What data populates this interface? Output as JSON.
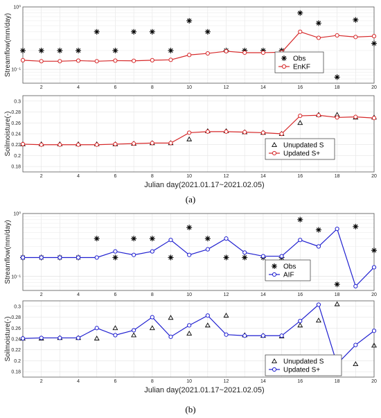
{
  "figure": {
    "captions": [
      "(a)",
      "(b)"
    ],
    "xlabel": "Julian day(2021.01.17~2021.02.05)"
  },
  "chart_data": [
    {
      "panel": "(a)",
      "type": "line",
      "ylabel": "Streamflow(mm/day)",
      "yscale": "log",
      "ylim": [
        0.06,
        1.0
      ],
      "yticks": [
        0.1,
        1
      ],
      "yticklabels": [
        "10⁻¹",
        "10⁰"
      ],
      "xlim": [
        1,
        20
      ],
      "xticks": [
        2,
        4,
        6,
        8,
        10,
        12,
        14,
        16,
        18,
        20
      ],
      "grid": true,
      "legend_position": "right",
      "x": [
        1,
        2,
        3,
        4,
        5,
        6,
        7,
        8,
        9,
        10,
        11,
        12,
        13,
        14,
        15,
        16,
        17,
        18,
        19,
        20
      ],
      "series": [
        {
          "name": "Obs",
          "marker": "asterisk",
          "color": "#000000",
          "values": [
            0.2,
            0.2,
            0.2,
            0.2,
            0.4,
            0.2,
            0.4,
            0.4,
            0.2,
            0.6,
            0.4,
            0.2,
            0.2,
            0.2,
            0.2,
            0.8,
            0.55,
            0.075,
            0.62,
            0.26
          ]
        },
        {
          "name": "EnKF",
          "marker": "circle",
          "color": "#d62728",
          "values": [
            0.14,
            0.135,
            0.135,
            0.138,
            0.135,
            0.138,
            0.137,
            0.14,
            0.142,
            0.17,
            0.18,
            0.195,
            0.185,
            0.185,
            0.188,
            0.4,
            0.32,
            0.35,
            0.33,
            0.34
          ]
        }
      ]
    },
    {
      "panel": "(a)",
      "type": "line",
      "ylabel": "Soilmoisture(-)",
      "ylim": [
        0.17,
        0.31
      ],
      "yticks": [
        0.18,
        0.2,
        0.22,
        0.24,
        0.26,
        0.28,
        0.3
      ],
      "yticklabels": [
        "0.18",
        "0.2",
        "0.22",
        "0.24",
        "0.26",
        "0.28",
        "0.3"
      ],
      "xlim": [
        1,
        20
      ],
      "xticks": [
        2,
        4,
        6,
        8,
        10,
        12,
        14,
        16,
        18,
        20
      ],
      "grid": true,
      "legend_position": "bottom-right",
      "x": [
        1,
        2,
        3,
        4,
        5,
        6,
        7,
        8,
        9,
        10,
        11,
        12,
        13,
        14,
        15,
        16,
        17,
        18,
        19,
        20
      ],
      "series": [
        {
          "name": "Unupdated S",
          "marker": "triangle",
          "color": "#000000",
          "values": [
            0.221,
            0.221,
            0.221,
            0.221,
            0.221,
            0.221,
            0.222,
            0.223,
            0.223,
            0.23,
            0.245,
            0.245,
            0.243,
            0.242,
            0.24,
            0.26,
            0.275,
            0.275,
            0.27,
            0.27
          ]
        },
        {
          "name": "Updated S+",
          "marker": "circle",
          "color": "#d62728",
          "values": [
            0.221,
            0.22,
            0.22,
            0.22,
            0.22,
            0.221,
            0.222,
            0.223,
            0.223,
            0.242,
            0.244,
            0.244,
            0.243,
            0.242,
            0.24,
            0.273,
            0.274,
            0.27,
            0.271,
            0.269
          ]
        }
      ]
    },
    {
      "panel": "(b)",
      "type": "line",
      "ylabel": "Streamflow(mm/day)",
      "yscale": "log",
      "ylim": [
        0.06,
        1.0
      ],
      "yticks": [
        0.1,
        1
      ],
      "yticklabels": [
        "10⁻¹",
        "10⁰"
      ],
      "xlim": [
        1,
        20
      ],
      "xticks": [
        2,
        4,
        6,
        8,
        10,
        12,
        14,
        16,
        18,
        20
      ],
      "grid": true,
      "legend_position": "right",
      "x": [
        1,
        2,
        3,
        4,
        5,
        6,
        7,
        8,
        9,
        10,
        11,
        12,
        13,
        14,
        15,
        16,
        17,
        18,
        19,
        20
      ],
      "series": [
        {
          "name": "Obs",
          "marker": "asterisk",
          "color": "#000000",
          "values": [
            0.2,
            0.2,
            0.2,
            0.2,
            0.4,
            0.2,
            0.4,
            0.4,
            0.2,
            0.6,
            0.4,
            0.2,
            0.2,
            0.2,
            0.2,
            0.8,
            0.55,
            0.075,
            0.62,
            0.26
          ]
        },
        {
          "name": "AIF",
          "marker": "circle",
          "color": "#1f1fd0",
          "values": [
            0.2,
            0.2,
            0.2,
            0.2,
            0.2,
            0.25,
            0.22,
            0.25,
            0.38,
            0.22,
            0.27,
            0.4,
            0.24,
            0.21,
            0.21,
            0.38,
            0.3,
            0.57,
            0.07,
            0.14
          ]
        }
      ]
    },
    {
      "panel": "(b)",
      "type": "line",
      "ylabel": "Soilmoisture(-)",
      "ylim": [
        0.17,
        0.31
      ],
      "yticks": [
        0.18,
        0.2,
        0.22,
        0.24,
        0.26,
        0.28,
        0.3
      ],
      "yticklabels": [
        "0.18",
        "0.2",
        "0.22",
        "0.24",
        "0.26",
        "0.28",
        "0.3"
      ],
      "xlim": [
        1,
        20
      ],
      "xticks": [
        2,
        4,
        6,
        8,
        10,
        12,
        14,
        16,
        18,
        20
      ],
      "grid": true,
      "legend_position": "bottom-right",
      "x": [
        1,
        2,
        3,
        4,
        5,
        6,
        7,
        8,
        9,
        10,
        11,
        12,
        13,
        14,
        15,
        16,
        17,
        18,
        19,
        20
      ],
      "series": [
        {
          "name": "Unupdated S",
          "marker": "triangle",
          "color": "#000000",
          "values": [
            0.241,
            0.241,
            0.242,
            0.242,
            0.241,
            0.26,
            0.247,
            0.26,
            0.279,
            0.25,
            0.265,
            0.283,
            0.247,
            0.246,
            0.245,
            0.265,
            0.274,
            0.304,
            0.194,
            0.228
          ]
        },
        {
          "name": "Updated S+",
          "marker": "circle",
          "color": "#1f1fd0",
          "values": [
            0.241,
            0.242,
            0.242,
            0.242,
            0.26,
            0.247,
            0.256,
            0.28,
            0.244,
            0.265,
            0.283,
            0.248,
            0.246,
            0.246,
            0.246,
            0.273,
            0.303,
            0.194,
            0.229,
            0.255
          ]
        }
      ]
    }
  ]
}
